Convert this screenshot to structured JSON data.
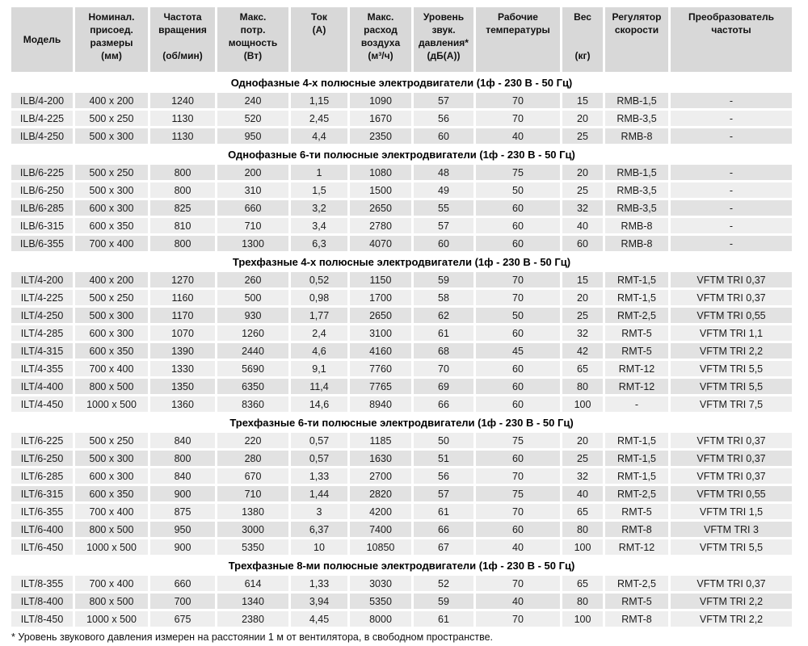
{
  "page": {
    "footnote": "* Уровень звукового давления измерен на расстоянии 1 м от вентилятора, в свободном пространстве."
  },
  "colors": {
    "header_bg": "#d8d8d8",
    "row_dark": "#e2e2e2",
    "row_light": "#eeeeee",
    "page_bg": "#ffffff",
    "text": "#1a1a1a"
  },
  "table": {
    "columns": [
      {
        "key": "model",
        "label": "Модель"
      },
      {
        "key": "dimensions",
        "label": "Номинал.\nприсоед.\nразмеры\n(мм)"
      },
      {
        "key": "rpm",
        "label": "Частота\nвращения\n\n(об/мин)"
      },
      {
        "key": "power",
        "label": "Макс.\nпотр.\nмощность\n(Вт)"
      },
      {
        "key": "current",
        "label": "Ток\n(А)"
      },
      {
        "key": "airflow",
        "label": "Макс.\nрасход\nвоздуха\n(м³/ч)"
      },
      {
        "key": "noise",
        "label": "Уровень\nзвук.\nдавления*\n(дБ(А))"
      },
      {
        "key": "temp",
        "label": "Рабочие\nтемпературы"
      },
      {
        "key": "weight",
        "label": "Вес\n\n\n(кг)"
      },
      {
        "key": "regulator",
        "label": "Регулятор\nскорости"
      },
      {
        "key": "converter",
        "label": "Преобразователь\nчастоты"
      }
    ],
    "sections": [
      {
        "title": "Однофазные 4-х полюсные электродвигатели (1ф - 230 В - 50 Гц)",
        "rows": [
          [
            "ILB/4-200",
            "400 x 200",
            "1240",
            "240",
            "1,15",
            "1090",
            "57",
            "70",
            "15",
            "RMB-1,5",
            "-"
          ],
          [
            "ILB/4-225",
            "500 x 250",
            "1130",
            "520",
            "2,45",
            "1670",
            "56",
            "70",
            "20",
            "RMB-3,5",
            "-"
          ],
          [
            "ILB/4-250",
            "500 x 300",
            "1130",
            "950",
            "4,4",
            "2350",
            "60",
            "40",
            "25",
            "RMB-8",
            "-"
          ]
        ]
      },
      {
        "title": "Однофазные 6-ти полюсные электродвигатели (1ф - 230 В - 50 Гц)",
        "rows": [
          [
            "ILB/6-225",
            "500 x 250",
            "800",
            "200",
            "1",
            "1080",
            "48",
            "75",
            "20",
            "RMB-1,5",
            "-"
          ],
          [
            "ILB/6-250",
            "500 x 300",
            "800",
            "310",
            "1,5",
            "1500",
            "49",
            "50",
            "25",
            "RMB-3,5",
            "-"
          ],
          [
            "ILB/6-285",
            "600 x 300",
            "825",
            "660",
            "3,2",
            "2650",
            "55",
            "60",
            "32",
            "RMB-3,5",
            "-"
          ],
          [
            "ILB/6-315",
            "600 x 350",
            "810",
            "710",
            "3,4",
            "2780",
            "57",
            "60",
            "40",
            "RMB-8",
            "-"
          ],
          [
            "ILB/6-355",
            "700 x 400",
            "800",
            "1300",
            "6,3",
            "4070",
            "60",
            "60",
            "60",
            "RMB-8",
            "-"
          ]
        ]
      },
      {
        "title": "Трехфазные 4-х полюсные электродвигатели (1ф - 230 В - 50 Гц)",
        "rows": [
          [
            "ILT/4-200",
            "400 x 200",
            "1270",
            "260",
            "0,52",
            "1150",
            "59",
            "70",
            "15",
            "RMT-1,5",
            "VFTM TRI 0,37"
          ],
          [
            "ILT/4-225",
            "500 x 250",
            "1160",
            "500",
            "0,98",
            "1700",
            "58",
            "70",
            "20",
            "RMT-1,5",
            "VFTM TRI 0,37"
          ],
          [
            "ILT/4-250",
            "500 x 300",
            "1170",
            "930",
            "1,77",
            "2650",
            "62",
            "50",
            "25",
            "RMT-2,5",
            "VFTM TRI 0,55"
          ],
          [
            "ILT/4-285",
            "600 x 300",
            "1070",
            "1260",
            "2,4",
            "3100",
            "61",
            "60",
            "32",
            "RMT-5",
            "VFTM TRI 1,1"
          ],
          [
            "ILT/4-315",
            "600 x 350",
            "1390",
            "2440",
            "4,6",
            "4160",
            "68",
            "45",
            "42",
            "RMT-5",
            "VFTM TRI 2,2"
          ],
          [
            "ILT/4-355",
            "700 x 400",
            "1330",
            "5690",
            "9,1",
            "7760",
            "70",
            "60",
            "65",
            "RMT-12",
            "VFTM TRI 5,5"
          ],
          [
            "ILT/4-400",
            "800 x 500",
            "1350",
            "6350",
            "11,4",
            "7765",
            "69",
            "60",
            "80",
            "RMT-12",
            "VFTM TRI 5,5"
          ],
          [
            "ILT/4-450",
            "1000 x 500",
            "1360",
            "8360",
            "14,6",
            "8940",
            "66",
            "60",
            "100",
            "-",
            "VFTM TRI 7,5"
          ]
        ]
      },
      {
        "title": "Трехфазные 6-ти полюсные электродвигатели (1ф - 230 В - 50 Гц)",
        "rows": [
          [
            "ILT/6-225",
            "500 x 250",
            "840",
            "220",
            "0,57",
            "1185",
            "50",
            "75",
            "20",
            "RMT-1,5",
            "VFTM TRI 0,37"
          ],
          [
            "ILT/6-250",
            "500 x 300",
            "800",
            "280",
            "0,57",
            "1630",
            "51",
            "60",
            "25",
            "RMT-1,5",
            "VFTM TRI 0,37"
          ],
          [
            "ILT/6-285",
            "600 x 300",
            "840",
            "670",
            "1,33",
            "2700",
            "56",
            "70",
            "32",
            "RMT-1,5",
            "VFTM TRI 0,37"
          ],
          [
            "ILT/6-315",
            "600 x 350",
            "900",
            "710",
            "1,44",
            "2820",
            "57",
            "75",
            "40",
            "RMT-2,5",
            "VFTM TRI 0,55"
          ],
          [
            "ILT/6-355",
            "700 x 400",
            "875",
            "1380",
            "3",
            "4200",
            "61",
            "70",
            "65",
            "RMT-5",
            "VFTM TRI 1,5"
          ],
          [
            "ILT/6-400",
            "800 x 500",
            "950",
            "3000",
            "6,37",
            "7400",
            "66",
            "60",
            "80",
            "RMT-8",
            "VFTM TRI 3"
          ],
          [
            "ILT/6-450",
            "1000 x 500",
            "900",
            "5350",
            "10",
            "10850",
            "67",
            "40",
            "100",
            "RMT-12",
            "VFTM TRI 5,5"
          ]
        ]
      },
      {
        "title": "Трехфазные 8-ми полюсные электродвигатели (1ф - 230 В - 50 Гц)",
        "rows": [
          [
            "ILT/8-355",
            "700 x 400",
            "660",
            "614",
            "1,33",
            "3030",
            "52",
            "70",
            "65",
            "RMT-2,5",
            "VFTM TRI 0,37"
          ],
          [
            "ILT/8-400",
            "800 x 500",
            "700",
            "1340",
            "3,94",
            "5350",
            "59",
            "40",
            "80",
            "RMT-5",
            "VFTM TRI 2,2"
          ],
          [
            "ILT/8-450",
            "1000 x 500",
            "675",
            "2380",
            "4,45",
            "8000",
            "61",
            "70",
            "100",
            "RMT-8",
            "VFTM TRI 2,2"
          ]
        ]
      }
    ]
  }
}
